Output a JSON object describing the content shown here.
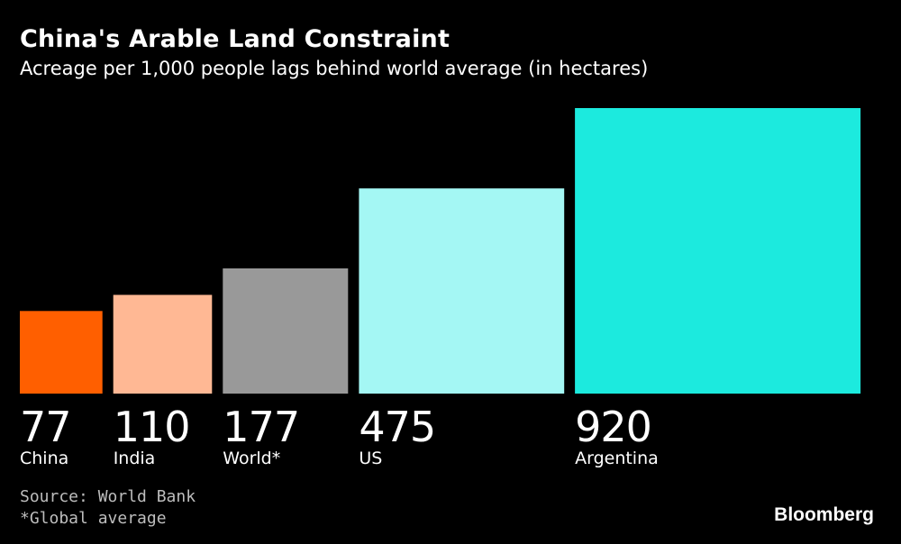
{
  "header": {
    "title": "China's Arable Land Constraint",
    "subtitle": "Acreage per 1,000 people lags behind world average (in hectares)"
  },
  "footer": {
    "source": "Source: World Bank",
    "footnote": "*Global average",
    "brand": "Bloomberg"
  },
  "chart_data": {
    "type": "bar",
    "title": "China's Arable Land Constraint",
    "subtitle": "Acreage per 1,000 people lags behind world average (in hectares)",
    "categories": [
      "China",
      "India",
      "World*",
      "US",
      "Argentina"
    ],
    "values": [
      77,
      110,
      177,
      475,
      920
    ],
    "value_labels": [
      "77",
      "110",
      "177",
      "475",
      "920"
    ],
    "colors": [
      "#ff5f00",
      "#ffb894",
      "#999999",
      "#a4f7f4",
      "#1ceade"
    ],
    "encoding": "square area proportional to value",
    "xlabel": "",
    "ylabel": "",
    "grid": false,
    "legend": "none"
  }
}
